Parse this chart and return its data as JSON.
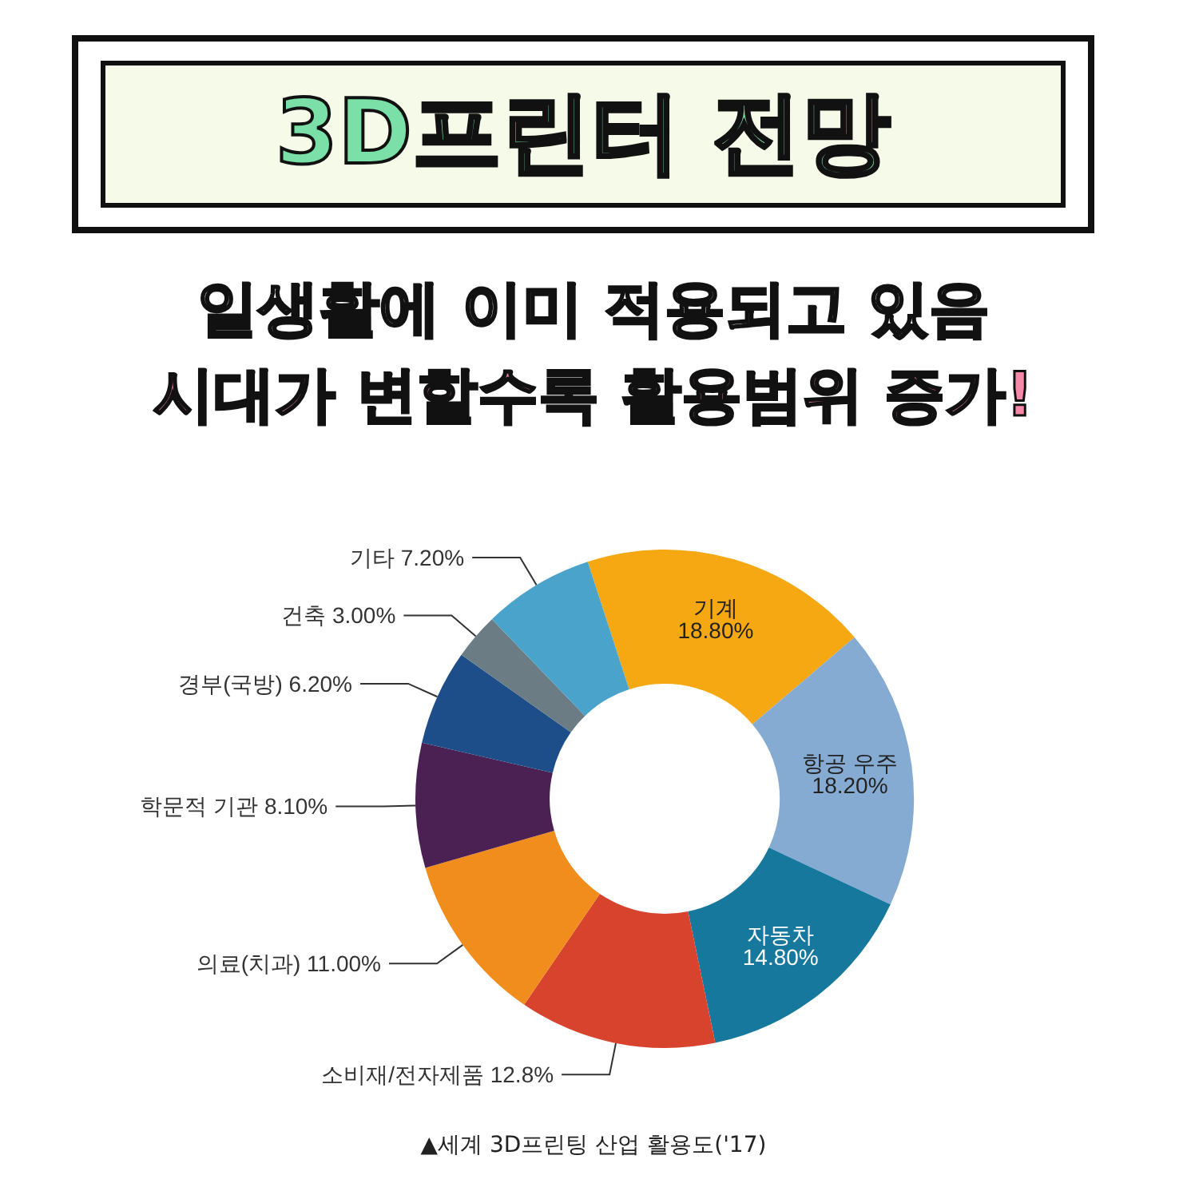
{
  "chart_data": {
    "type": "donut",
    "title": "3D프린터 전망",
    "subtitle": "일생활에 이미 적용되고 있음",
    "annotations": [
      "시대가 변할수록 활용범위 증가!",
      "▲세계 3D프린팅 산업 활용도('17)"
    ],
    "categories": [
      "기계",
      "항공 우주",
      "자동차",
      "소비재/전자제품",
      "의료(치과)",
      "학문적 기관",
      "경부(국방)",
      "건축",
      "기타"
    ],
    "values": [
      18.8,
      18.2,
      14.8,
      12.8,
      11.0,
      8.1,
      6.2,
      3.0,
      7.2
    ],
    "value_labels": [
      "18.80%",
      "18.20%",
      "14.80%",
      "12.8%",
      "11.00%",
      "8.10%",
      "6.20%",
      "3.00%",
      "7.20%"
    ],
    "colors": [
      "#f5a811",
      "#86abd3",
      "#17789e",
      "#d8432e",
      "#f18d1c",
      "#4b2153",
      "#1d4e89",
      "#6b7c84",
      "#4aa3cb"
    ]
  }
}
